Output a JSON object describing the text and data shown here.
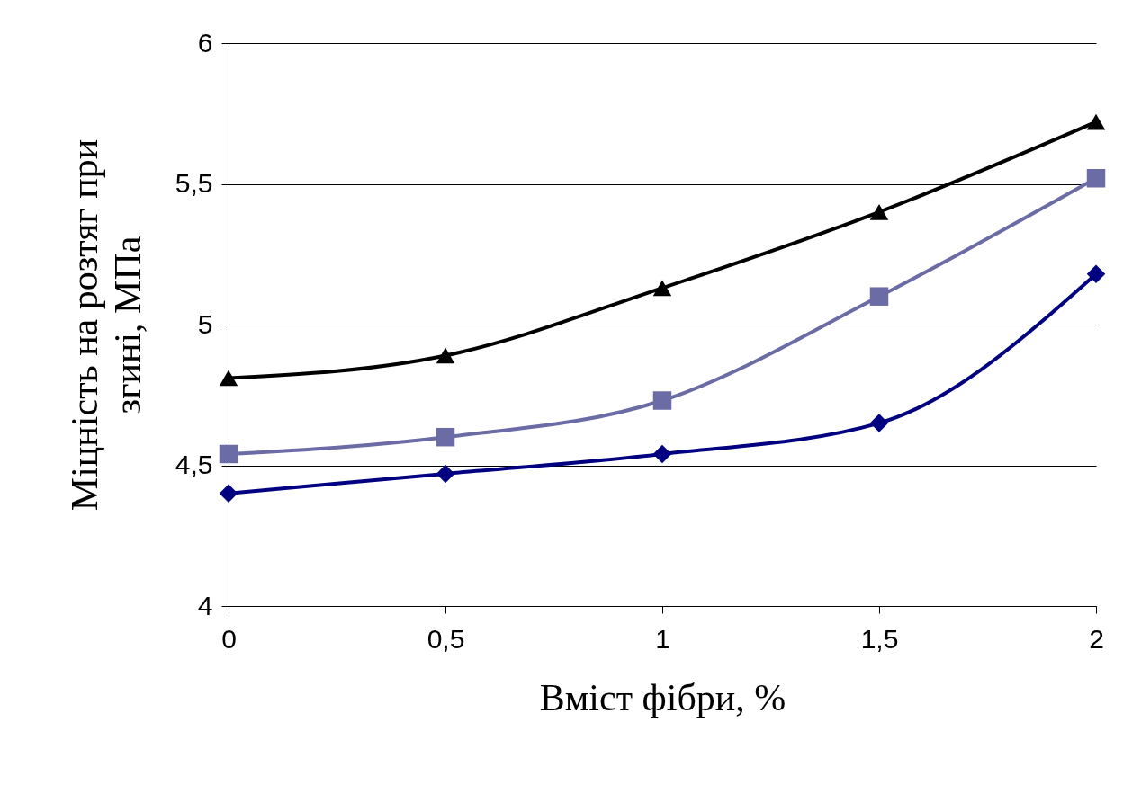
{
  "chart_data": {
    "type": "line",
    "xlabel": "Вміст фібри, %",
    "ylabel": "Міцність на розтяг при згині, МПа",
    "x": [
      0,
      0.5,
      1,
      1.5,
      2
    ],
    "series": [
      {
        "color": "#000000",
        "marker": "triangle",
        "values": [
          4.81,
          4.89,
          5.13,
          5.4,
          5.72
        ]
      },
      {
        "color": "#6b6ba6",
        "marker": "square",
        "values": [
          4.54,
          4.6,
          4.73,
          5.1,
          5.52
        ]
      },
      {
        "color": "#000080",
        "marker": "diamond",
        "values": [
          4.4,
          4.47,
          4.54,
          4.65,
          5.18
        ]
      }
    ],
    "xlim": [
      0,
      2
    ],
    "ylim": [
      4,
      6
    ],
    "xticks": [
      0,
      {
        "value": 0.5,
        "label": "0,5"
      },
      1,
      {
        "value": 1.5,
        "label": "1,5"
      },
      2
    ],
    "yticks": [
      4,
      {
        "value": 4.5,
        "label": "4,5"
      },
      5,
      {
        "value": 5.5,
        "label": "5,5"
      },
      6
    ],
    "grid": "y"
  }
}
